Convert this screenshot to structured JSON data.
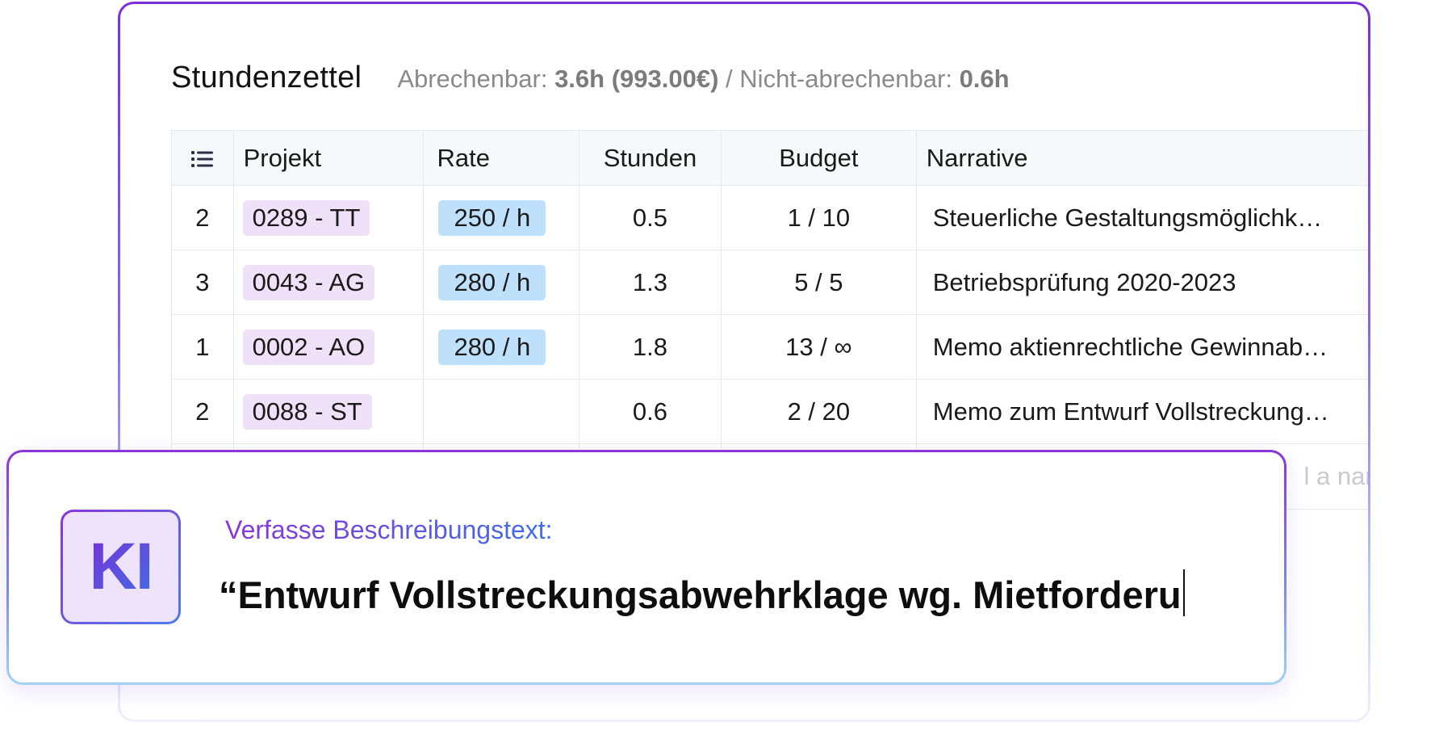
{
  "header": {
    "title": "Stundenzettel",
    "billable_label": "Abrechenbar:",
    "billable_value": "3.6h (993.00€)",
    "separator": "/",
    "nonbillable_label": "Nicht-abrechenbar:",
    "nonbillable_value": "0.6h"
  },
  "table": {
    "columns": {
      "index_icon": "list-icon",
      "project": "Projekt",
      "rate": "Rate",
      "hours": "Stunden",
      "budget": "Budget",
      "narrative": "Narrative"
    },
    "rows": [
      {
        "index": "2",
        "project": "0289 - TT",
        "rate": "250 / h",
        "hours": "0.5",
        "budget": "1 / 10",
        "narrative": "Steuerliche Gestaltungsmöglichk…"
      },
      {
        "index": "3",
        "project": "0043 - AG",
        "rate": "280 / h",
        "hours": "1.3",
        "budget": "5 / 5",
        "narrative": "Betriebsprüfung 2020-2023"
      },
      {
        "index": "1",
        "project": "0002 - AO",
        "rate": "280 / h",
        "hours": "1.8",
        "budget": "13 / ∞",
        "narrative": "Memo aktienrechtliche Gewinnab…"
      },
      {
        "index": "2",
        "project": "0088 - ST",
        "rate": "",
        "hours": "0.6",
        "budget": "2 / 20",
        "narrative": "Memo zum Entwurf Vollstreckung…"
      }
    ],
    "new_row_placeholder": "l a narr"
  },
  "ai": {
    "badge": "KI",
    "prompt": "Verfasse Beschreibungstext:",
    "output": "“Entwurf Vollstreckungsabwehrklage wg. Mietforderu"
  },
  "colors": {
    "accent_purple": "#7a2fd6",
    "accent_blue": "#3f6fe8",
    "project_tag_bg": "#efe2f8",
    "rate_tag_bg": "#bfe0fb"
  }
}
